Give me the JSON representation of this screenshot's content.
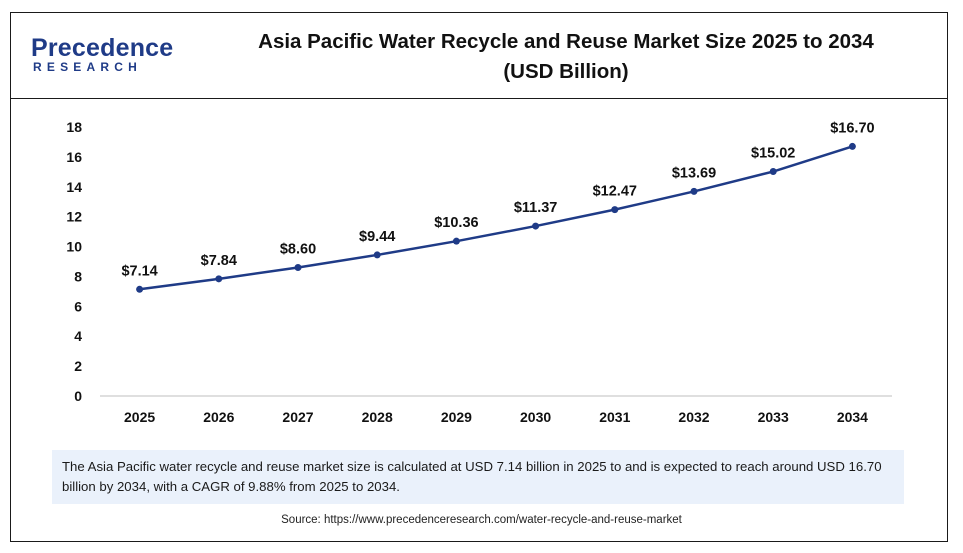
{
  "logo": {
    "top": "Precedence",
    "bottom": "RESEARCH"
  },
  "title_line1": "Asia Pacific Water Recycle and Reuse Market Size 2025 to 2034",
  "title_line2": "(USD Billion)",
  "note": "The Asia Pacific water recycle and reuse market size is calculated at USD  7.14 billion in 2025 to and is expected to reach around USD 16.70 billion by 2034, with a CAGR of 9.88% from 2025 to 2034.",
  "source": "Source: https://www.precedenceresearch.com/water-recycle-and-reuse-market",
  "colors": {
    "line": "#1f3b87",
    "marker": "#1f3b87",
    "brand": "#1f3b87"
  },
  "chart_data": {
    "type": "line",
    "categories": [
      "2025",
      "2026",
      "2027",
      "2028",
      "2029",
      "2030",
      "2031",
      "2032",
      "2033",
      "2034"
    ],
    "series": [
      {
        "values": [
          7.14,
          7.84,
          8.6,
          9.44,
          10.36,
          11.37,
          12.47,
          13.69,
          15.02,
          16.7
        ],
        "labels": [
          "$7.14",
          "$7.84",
          "$8.60",
          "$9.44",
          "$10.36",
          "$11.37",
          "$12.47",
          "$13.69",
          "$15.02",
          "$16.70"
        ]
      }
    ],
    "y_ticks": [
      0,
      2,
      4,
      6,
      8,
      10,
      12,
      14,
      16,
      18
    ],
    "ylim": [
      0,
      18
    ],
    "title": "Asia Pacific Water Recycle and Reuse Market Size 2025 to 2034 (USD Billion)",
    "xlabel": "",
    "ylabel": "",
    "grid": false,
    "legend": "none"
  }
}
